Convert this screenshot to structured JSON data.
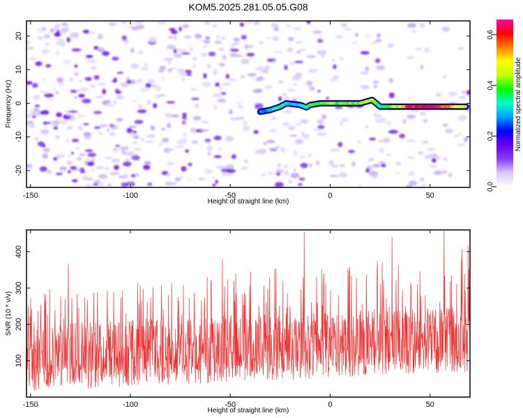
{
  "figure": {
    "title": "KOM5.2025.281.05.05.G08"
  },
  "chart_data": [
    {
      "type": "heatmap",
      "title": "KOM5.2025.281.05.05.G08",
      "xlabel": "Height of straight line (km)",
      "ylabel": "Frequency (Hz)",
      "xlim": [
        -152,
        70
      ],
      "ylim": [
        -25,
        24.5
      ],
      "xticks": [
        -150,
        -100,
        -50,
        0,
        50
      ],
      "yticks": [
        -20,
        -10,
        0,
        10,
        20
      ],
      "colorbar": {
        "label": "Normalized spectral amplitude",
        "range": [
          0.0,
          0.66
        ],
        "ticks": [
          0.0,
          0.2,
          0.4,
          0.6
        ],
        "colormap": [
          "#ffffff",
          "#d8c8f8",
          "#8040f0",
          "#6600ee",
          "#0000ff",
          "#00a0ff",
          "#00ffcc",
          "#00ff00",
          "#c0ff00",
          "#ffff00",
          "#ff8000",
          "#ff0000",
          "#ff00aa"
        ]
      },
      "noise_level": 0.1,
      "signal_track": [
        {
          "x": -35,
          "y": -2.5,
          "amp": 0.25
        },
        {
          "x": -30,
          "y": -2.0,
          "amp": 0.3
        },
        {
          "x": -25,
          "y": -1.0,
          "amp": 0.35
        },
        {
          "x": -22,
          "y": 0.0,
          "amp": 0.3
        },
        {
          "x": -15,
          "y": -0.5,
          "amp": 0.3
        },
        {
          "x": -12,
          "y": -1.2,
          "amp": 0.35
        },
        {
          "x": -10,
          "y": -0.5,
          "amp": 0.38
        },
        {
          "x": -5,
          "y": 0.0,
          "amp": 0.4
        },
        {
          "x": 0,
          "y": 0.0,
          "amp": 0.45
        },
        {
          "x": 5,
          "y": 0.0,
          "amp": 0.4
        },
        {
          "x": 10,
          "y": 0.0,
          "amp": 0.4
        },
        {
          "x": 15,
          "y": 0.0,
          "amp": 0.42
        },
        {
          "x": 18,
          "y": 0.5,
          "amp": 0.45
        },
        {
          "x": 21,
          "y": 1.0,
          "amp": 0.45
        },
        {
          "x": 25,
          "y": -1.0,
          "amp": 0.35
        },
        {
          "x": 30,
          "y": -1.0,
          "amp": 0.4
        },
        {
          "x": 35,
          "y": -1.0,
          "amp": 0.45
        },
        {
          "x": 40,
          "y": -1.0,
          "amp": 0.6
        },
        {
          "x": 45,
          "y": -1.0,
          "amp": 0.58
        },
        {
          "x": 50,
          "y": -1.0,
          "amp": 0.62
        },
        {
          "x": 55,
          "y": -1.0,
          "amp": 0.6
        },
        {
          "x": 60,
          "y": -1.0,
          "amp": 0.55
        },
        {
          "x": 65,
          "y": -1.0,
          "amp": 0.48
        },
        {
          "x": 68,
          "y": -1.0,
          "amp": 0.45
        }
      ]
    },
    {
      "type": "line",
      "xlabel": "Height of straight line (km)",
      "ylabel": "SNR (10 * v/v)",
      "xlim": [
        -152,
        70
      ],
      "ylim": [
        0,
        460
      ],
      "xticks": [
        -150,
        -100,
        -50,
        0,
        50
      ],
      "yticks": [
        100,
        200,
        300,
        400
      ],
      "color": "#ee3333",
      "n_points": 1400,
      "baseline_start": 110,
      "baseline_end": 165,
      "spike_peaks": [
        {
          "x": -131,
          "y": 367
        },
        {
          "x": -54,
          "y": 380
        },
        {
          "x": -13,
          "y": 455
        },
        {
          "x": 31,
          "y": 440
        },
        {
          "x": 57,
          "y": 458
        },
        {
          "x": 66,
          "y": 408
        },
        {
          "x": 69,
          "y": 418
        }
      ]
    }
  ]
}
